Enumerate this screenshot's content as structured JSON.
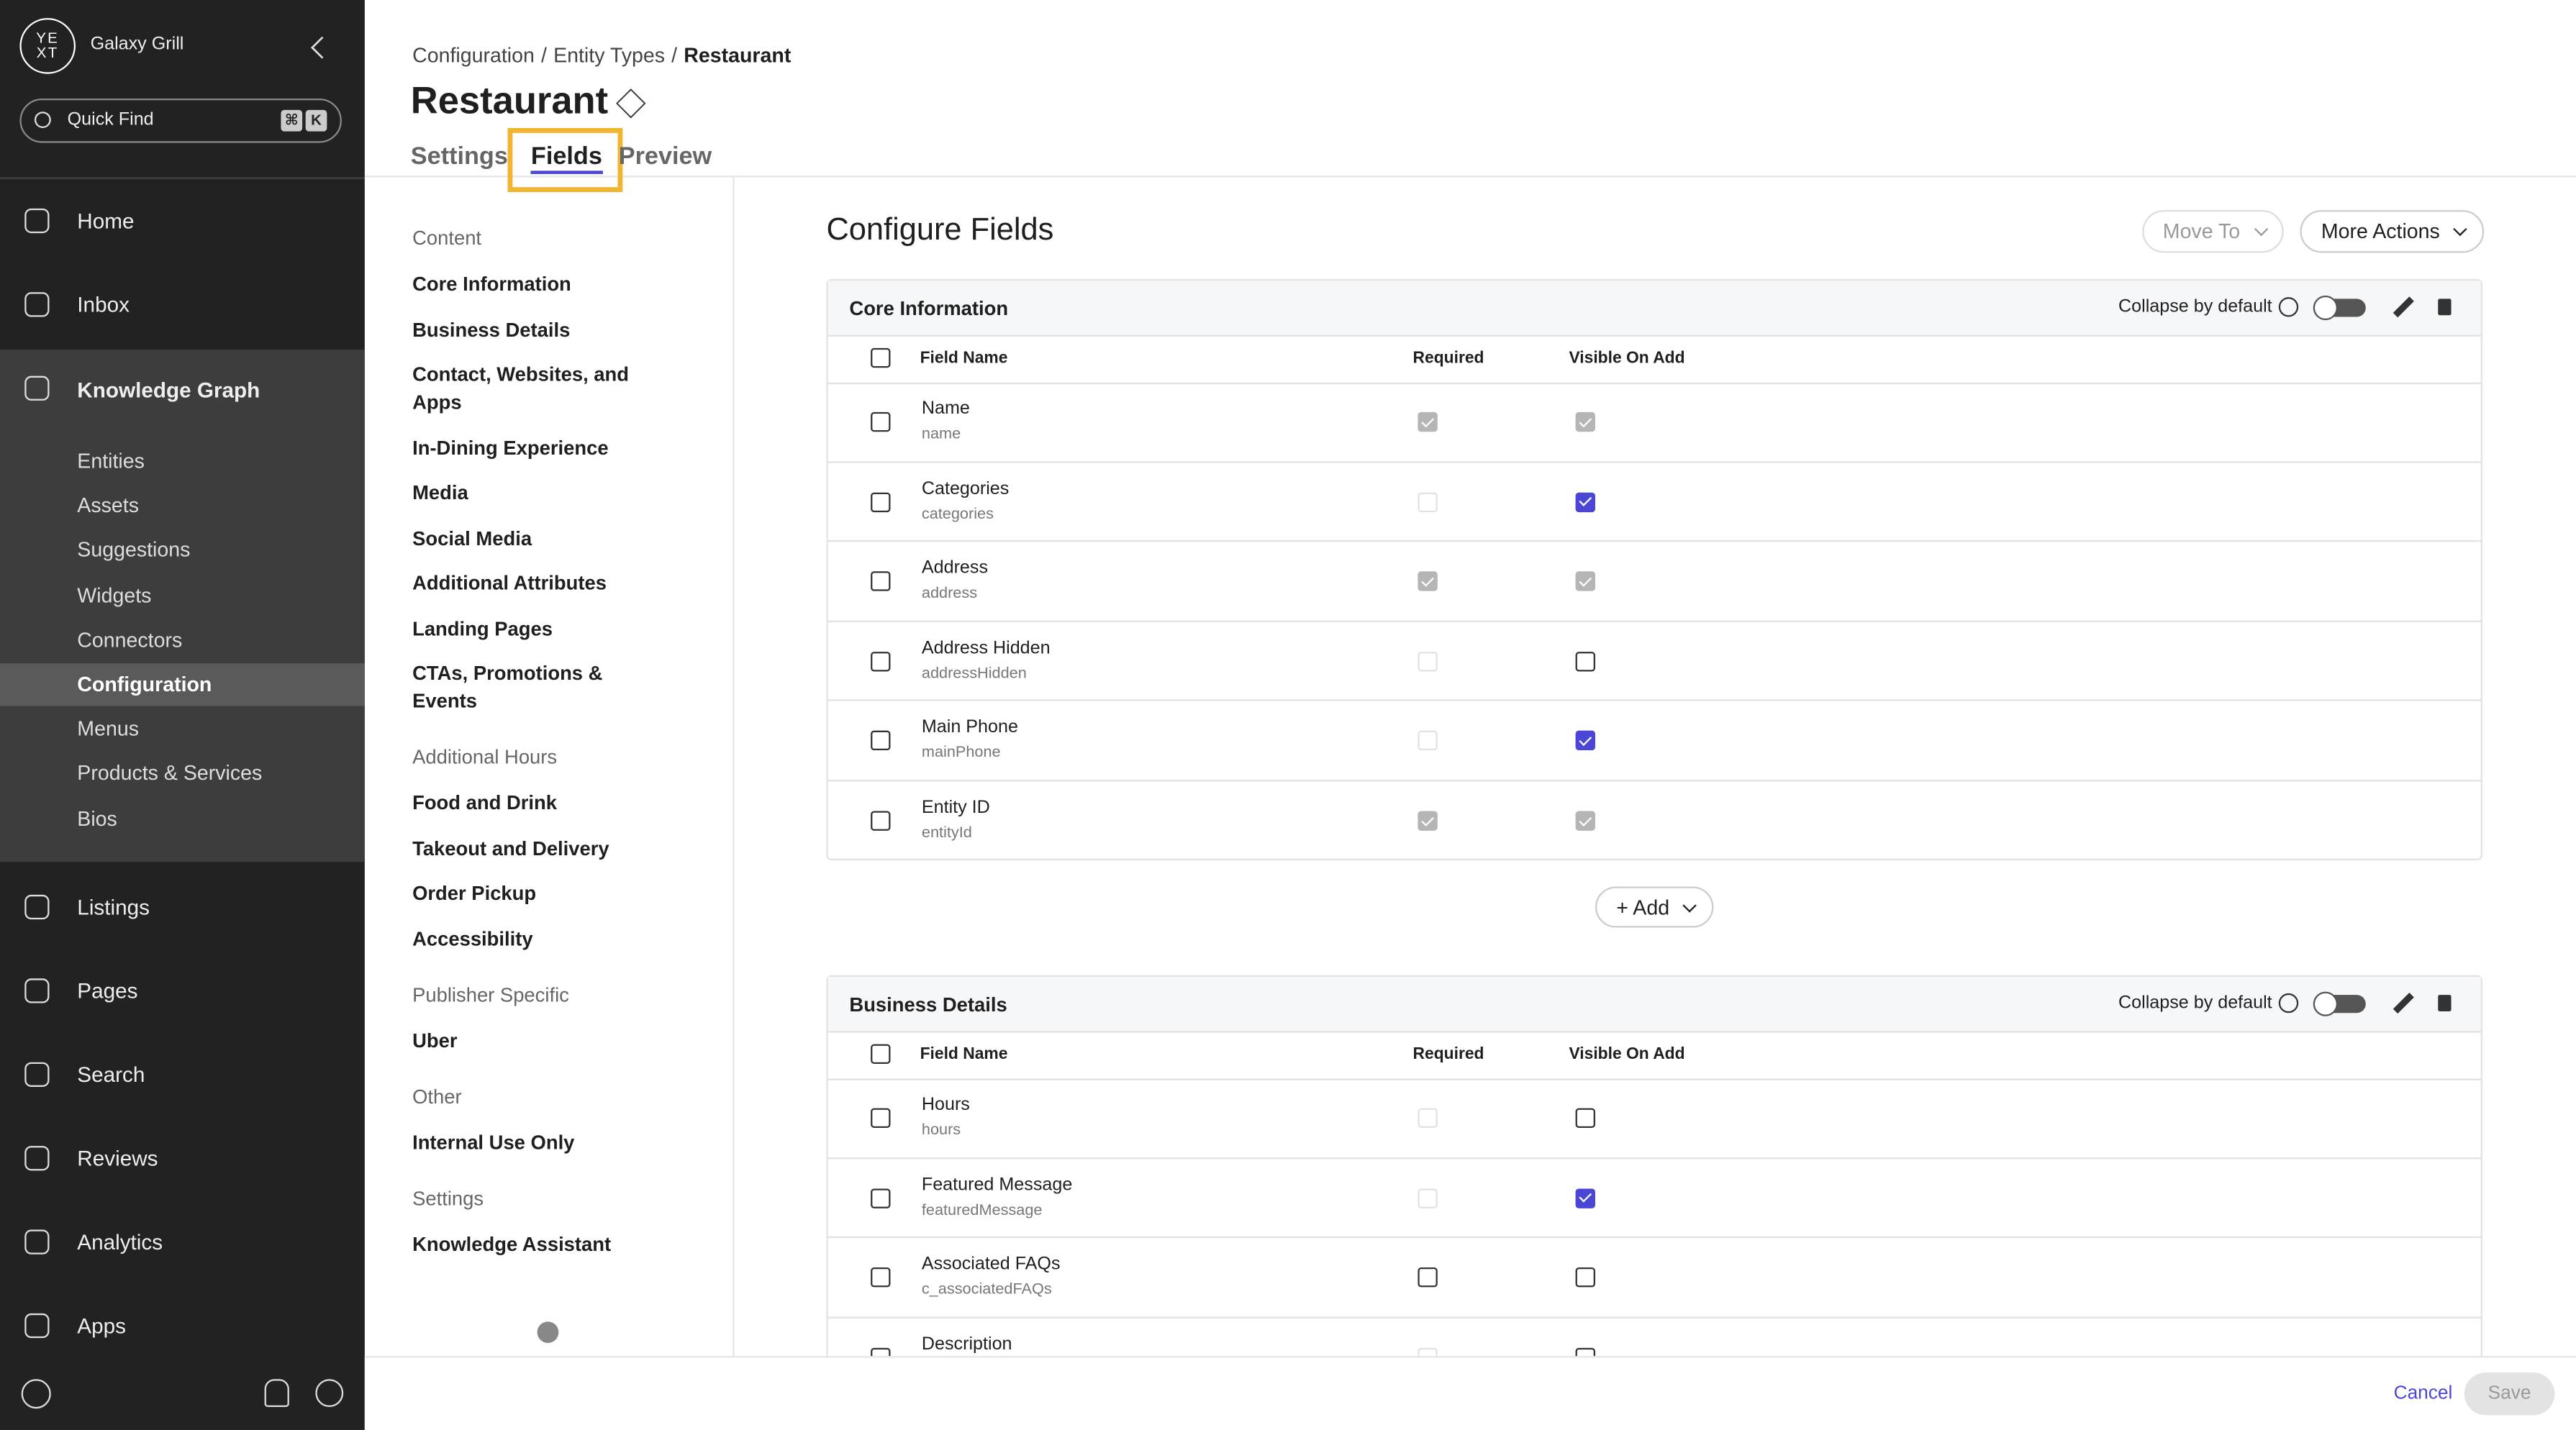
{
  "sidebar": {
    "logo": [
      "YE",
      "XT"
    ],
    "org": "Galaxy Grill",
    "search": "Quick Find",
    "shortcut": [
      "⌘",
      "K"
    ],
    "nav": [
      {
        "label": "Home"
      },
      {
        "label": "Inbox"
      },
      {
        "label": "Knowledge Graph",
        "expanded": true,
        "children": [
          "Entities",
          "Assets",
          "Suggestions",
          "Widgets",
          "Connectors",
          "Configuration",
          "Menus",
          "Products & Services",
          "Bios"
        ],
        "selected_child": 5
      },
      {
        "label": "Listings"
      },
      {
        "label": "Pages"
      },
      {
        "label": "Search"
      },
      {
        "label": "Reviews"
      },
      {
        "label": "Analytics"
      },
      {
        "label": "Apps"
      }
    ]
  },
  "header": {
    "breadcrumb": [
      "Configuration",
      "Entity Types",
      "Restaurant"
    ],
    "breadcrumb_separator": "/",
    "title": "Restaurant",
    "tabs": [
      "Settings",
      "Fields",
      "Preview"
    ],
    "active_tab": 1
  },
  "section_nav": [
    {
      "heading": "Content",
      "items": [
        "Core Information",
        "Business Details",
        "Contact, Websites, and Apps",
        "In-Dining Experience",
        "Media",
        "Social Media",
        "Additional Attributes",
        "Landing Pages",
        "CTAs, Promotions & Events"
      ]
    },
    {
      "heading": "Additional Hours",
      "items": [
        "Food and Drink",
        "Takeout and Delivery",
        "Order Pickup",
        "Accessibility"
      ]
    },
    {
      "heading": "Publisher Specific",
      "items": [
        "Uber"
      ]
    },
    {
      "heading": "Other",
      "items": [
        "Internal Use Only"
      ]
    },
    {
      "heading": "Settings",
      "items": [
        "Knowledge Assistant"
      ]
    }
  ],
  "main": {
    "title": "Configure Fields",
    "actions": [
      {
        "label": "Move To",
        "disabled": true
      },
      {
        "label": "More Actions",
        "disabled": false
      }
    ],
    "add_button": "+ Add",
    "groups": [
      {
        "title": "Core Information",
        "collapse_label": "Collapse by default",
        "columns": [
          "Field Name",
          "Required",
          "Visible On Add"
        ],
        "rows": [
          {
            "name": "Name",
            "api": "name",
            "required": "checked-disabled",
            "visible": "checked-disabled"
          },
          {
            "name": "Categories",
            "api": "categories",
            "required": "disabled",
            "visible": "checked"
          },
          {
            "name": "Address",
            "api": "address",
            "required": "checked-disabled",
            "visible": "checked-disabled"
          },
          {
            "name": "Address Hidden",
            "api": "addressHidden",
            "required": "disabled",
            "visible": "unchecked"
          },
          {
            "name": "Main Phone",
            "api": "mainPhone",
            "required": "disabled",
            "visible": "checked"
          },
          {
            "name": "Entity ID",
            "api": "entityId",
            "required": "checked-disabled",
            "visible": "checked-disabled"
          }
        ]
      },
      {
        "title": "Business Details",
        "collapse_label": "Collapse by default",
        "columns": [
          "Field Name",
          "Required",
          "Visible On Add"
        ],
        "rows": [
          {
            "name": "Hours",
            "api": "hours",
            "required": "disabled",
            "visible": "unchecked"
          },
          {
            "name": "Featured Message",
            "api": "featuredMessage",
            "required": "disabled",
            "visible": "checked"
          },
          {
            "name": "Associated FAQs",
            "api": "c_associatedFAQs",
            "required": "unchecked",
            "visible": "unchecked"
          },
          {
            "name": "Description",
            "required": "disabled",
            "visible": "unchecked"
          }
        ]
      }
    ]
  },
  "footer": {
    "cancel": "Cancel",
    "save": "Save"
  }
}
